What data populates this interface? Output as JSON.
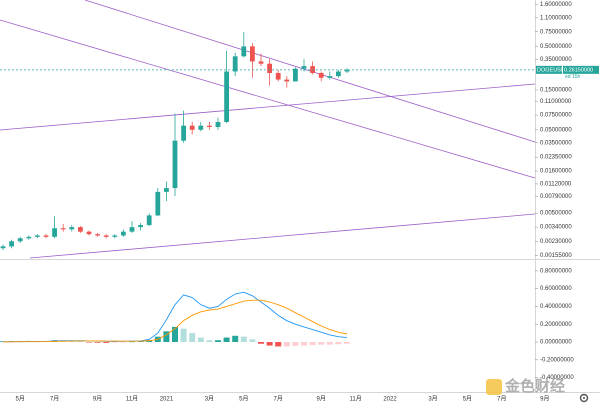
{
  "chart_data": {
    "type": "candlestick",
    "symbol": "DOGEUSD",
    "last_price": {
      "value": 0.2615,
      "label": "0.26150000"
    },
    "countdown": "ed 15h",
    "watermark": "金色财经",
    "log_scale": true,
    "up_color": "#26a69a",
    "down_color": "#ef5350",
    "last_price_color": "#26a69a",
    "categories": [
      null,
      null,
      "5月",
      null,
      null,
      null,
      "7月",
      null,
      null,
      null,
      null,
      "9月",
      null,
      null,
      null,
      "11月",
      null,
      null,
      null,
      "2021",
      null,
      null,
      null,
      null,
      "3月",
      null,
      null,
      null,
      "5月",
      null,
      null,
      null,
      "7月",
      null,
      null,
      null,
      null,
      "9月",
      null,
      null,
      null,
      "11月",
      null,
      null,
      null,
      "2022",
      null,
      null,
      null,
      null,
      "3月",
      null,
      null,
      null,
      "5月",
      null,
      null,
      null,
      "7月",
      null,
      null,
      null,
      null,
      "9月"
    ],
    "open": [
      0.0019,
      0.002,
      0.0023,
      0.0025,
      0.0026,
      0.0027,
      0.0026,
      0.0033,
      0.0032,
      0.0034,
      0.003,
      0.0028,
      0.0027,
      0.0026,
      0.0027,
      0.003,
      0.0034,
      0.0036,
      0.0047,
      0.009,
      0.01,
      0.037,
      0.056,
      0.05,
      0.056,
      0.054,
      0.062,
      0.25,
      0.38,
      0.5,
      0.33,
      0.31,
      0.24,
      0.2,
      0.19,
      0.27,
      0.29,
      0.24,
      0.21,
      0.22,
      0.25,
      null,
      null,
      null,
      null,
      null,
      null,
      null,
      null,
      null,
      null,
      null,
      null,
      null,
      null,
      null,
      null,
      null,
      null,
      null,
      null,
      null,
      null,
      null
    ],
    "high": [
      0.0021,
      0.0024,
      0.0026,
      0.0027,
      0.0028,
      0.0028,
      0.0046,
      0.0037,
      0.0036,
      0.0035,
      0.0031,
      0.0029,
      0.0028,
      0.0028,
      0.0032,
      0.004,
      0.0038,
      0.005,
      0.01,
      0.012,
      0.078,
      0.085,
      0.062,
      0.062,
      0.062,
      0.07,
      0.44,
      0.42,
      0.74,
      0.55,
      0.41,
      0.35,
      0.26,
      0.22,
      0.28,
      0.35,
      0.33,
      0.25,
      0.25,
      0.26,
      0.275,
      null,
      null,
      null,
      null,
      null,
      null,
      null,
      null,
      null,
      null,
      null,
      null,
      null,
      null,
      null,
      null,
      null,
      null,
      null,
      null,
      null,
      null,
      null
    ],
    "low": [
      0.0018,
      0.0019,
      0.0022,
      0.0024,
      0.0025,
      0.0025,
      0.0025,
      0.003,
      0.003,
      0.0029,
      0.0027,
      0.0026,
      0.0025,
      0.0025,
      0.0026,
      0.0029,
      0.0031,
      0.0035,
      0.0046,
      0.007,
      0.008,
      0.035,
      0.044,
      0.048,
      0.05,
      0.05,
      0.06,
      0.22,
      0.37,
      0.21,
      0.29,
      0.17,
      0.19,
      0.16,
      0.19,
      0.25,
      0.23,
      0.19,
      0.2,
      0.21,
      0.24,
      null,
      null,
      null,
      null,
      null,
      null,
      null,
      null,
      null,
      null,
      null,
      null,
      null,
      null,
      null,
      null,
      null,
      null,
      null,
      null,
      null,
      null,
      null
    ],
    "close": [
      0.002,
      0.0023,
      0.0025,
      0.0026,
      0.0027,
      0.0026,
      0.0033,
      0.0032,
      0.0034,
      0.003,
      0.0028,
      0.0027,
      0.0026,
      0.0027,
      0.003,
      0.0034,
      0.0036,
      0.0047,
      0.009,
      0.01,
      0.037,
      0.056,
      0.05,
      0.056,
      0.054,
      0.062,
      0.25,
      0.38,
      0.5,
      0.33,
      0.31,
      0.24,
      0.2,
      0.19,
      0.27,
      0.29,
      0.24,
      0.21,
      0.22,
      0.25,
      0.2615,
      null,
      null,
      null,
      null,
      null,
      null,
      null,
      null,
      null,
      null,
      null,
      null,
      null,
      null,
      null,
      null,
      null,
      null,
      null,
      null,
      null,
      null,
      null
    ],
    "ylim": [
      0.00145,
      1.8
    ],
    "yticks": [
      {
        "value": 1.6,
        "label": "1.60000000"
      },
      {
        "value": 1.1,
        "label": "1.10000000"
      },
      {
        "value": 0.75,
        "label": "0.75000000"
      },
      {
        "value": 0.5,
        "label": "0.50000000"
      },
      {
        "value": 0.35,
        "label": "0.35000000"
      },
      {
        "value": 0.15,
        "label": "0.15000000"
      },
      {
        "value": 0.11,
        "label": "0.11000000"
      },
      {
        "value": 0.075,
        "label": "0.07500000"
      },
      {
        "value": 0.05,
        "label": "0.05000000"
      },
      {
        "value": 0.035,
        "label": "0.03500000"
      },
      {
        "value": 0.0235,
        "label": "0.02350000"
      },
      {
        "value": 0.016,
        "label": "0.01600000"
      },
      {
        "value": 0.0112,
        "label": "0.01120000"
      },
      {
        "value": 0.0079,
        "label": "0.00790000"
      },
      {
        "value": 0.005,
        "label": "0.00500000"
      },
      {
        "value": 0.0034,
        "label": "0.00340000"
      },
      {
        "value": 0.0023,
        "label": "0.00230000"
      },
      {
        "value": 0.00155,
        "label": "0.00155000"
      }
    ],
    "indicator": {
      "type": "macd",
      "ylim": [
        -0.54,
        0.9
      ],
      "yticks": [
        {
          "value": 0.8,
          "label": "0.80000000"
        },
        {
          "value": 0.6,
          "label": "0.60000000"
        },
        {
          "value": 0.4,
          "label": "0.40000000"
        },
        {
          "value": 0.2,
          "label": "0.20000000"
        },
        {
          "value": 0,
          "label": "0.00000000"
        },
        {
          "value": -0.2,
          "label": "-0.20000000"
        },
        {
          "value": -0.4,
          "label": "-0.40000000"
        }
      ],
      "series": [
        {
          "color": "#2196f3",
          "values": [
            0.002,
            0.003,
            0.004,
            0.005,
            0.006,
            0.006,
            0.012,
            0.014,
            0.015,
            0.014,
            0.012,
            0.01,
            0.008,
            0.007,
            0.008,
            0.01,
            0.012,
            0.03,
            0.1,
            0.25,
            0.42,
            0.53,
            0.5,
            0.42,
            0.38,
            0.4,
            0.48,
            0.54,
            0.56,
            0.52,
            0.45,
            0.38,
            0.3,
            0.24,
            0.2,
            0.17,
            0.14,
            0.11,
            0.08,
            0.06,
            0.05,
            null,
            null,
            null,
            null,
            null,
            null,
            null,
            null,
            null,
            null,
            null,
            null,
            null,
            null,
            null,
            null,
            null,
            null,
            null,
            null,
            null,
            null,
            null
          ]
        },
        {
          "color": "#ff9800",
          "values": [
            0.001,
            0.002,
            0.003,
            0.003,
            0.004,
            0.005,
            0.007,
            0.009,
            0.011,
            0.012,
            0.012,
            0.012,
            0.011,
            0.01,
            0.009,
            0.009,
            0.01,
            0.014,
            0.03,
            0.08,
            0.15,
            0.24,
            0.3,
            0.34,
            0.36,
            0.37,
            0.4,
            0.43,
            0.46,
            0.47,
            0.47,
            0.45,
            0.42,
            0.38,
            0.33,
            0.28,
            0.23,
            0.18,
            0.14,
            0.11,
            0.09,
            null,
            null,
            null,
            null,
            null,
            null,
            null,
            null,
            null,
            null,
            null,
            null,
            null,
            null,
            null,
            null,
            null,
            null,
            null,
            null,
            null,
            null,
            null
          ]
        }
      ],
      "histogram": [
        0.008,
        0.01,
        0.01,
        0.012,
        0.01,
        0.006,
        0.02,
        0.018,
        0.012,
        0.006,
        -0.004,
        -0.008,
        -0.01,
        -0.008,
        -0.004,
        0.004,
        0.008,
        0.02,
        0.06,
        0.12,
        0.17,
        0.15,
        0.1,
        0.05,
        0.02,
        0.02,
        0.05,
        0.07,
        0.06,
        0.03,
        -0.02,
        -0.04,
        -0.05,
        -0.05,
        -0.045,
        -0.04,
        -0.035,
        -0.03,
        -0.03,
        -0.025,
        -0.02,
        null,
        null,
        null,
        null,
        null,
        null,
        null,
        null,
        null,
        null,
        null,
        null,
        null,
        null,
        null,
        null,
        null,
        null,
        null,
        null,
        null,
        null,
        null
      ],
      "histogram_colors": [
        "#26a69a",
        "#b2dfdb",
        "#ffcdd2",
        "#ef5350"
      ]
    }
  }
}
